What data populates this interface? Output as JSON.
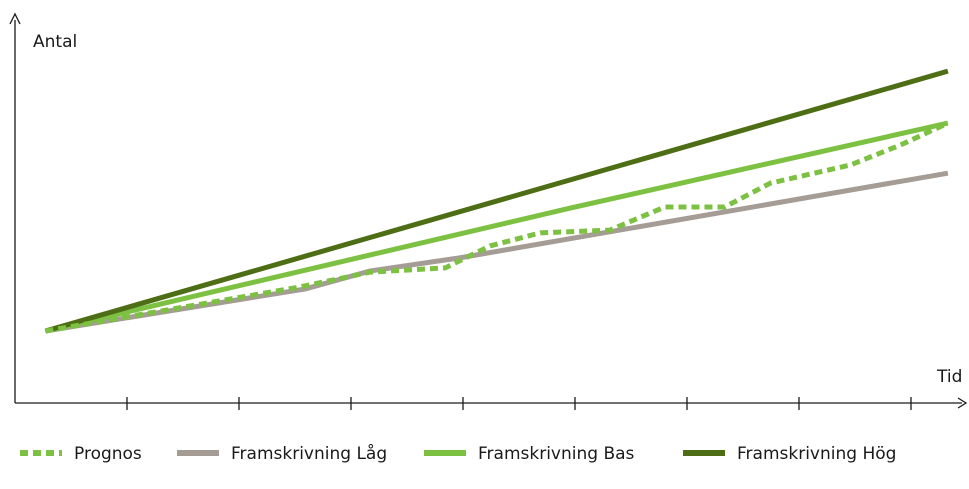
{
  "chart_data": {
    "type": "line",
    "y_label": "Antal",
    "x_label": "Tid",
    "xlim": [
      0,
      10
    ],
    "ylim": [
      0,
      100
    ],
    "series": [
      {
        "name": "Prognos",
        "color": "#7dc142",
        "dashed": true,
        "x": [
          0.32,
          2.99,
          3.74,
          4.53,
          5.0,
          5.53,
          6.26,
          6.84,
          7.47,
          7.95,
          8.79,
          9.32,
          9.82
        ],
        "values": [
          18.7,
          30.1,
          34.0,
          35.1,
          40.8,
          44.2,
          44.9,
          50.9,
          50.9,
          57.1,
          61.8,
          67.0,
          72.7
        ]
      },
      {
        "name": "Framskrivning Låg",
        "color": "#a59d95",
        "dashed": false,
        "x": [
          0.32,
          3.05,
          3.74,
          4.68,
          9.82
        ],
        "values": [
          18.7,
          29.6,
          34.3,
          37.7,
          59.7
        ]
      },
      {
        "name": "Framskrivning Bas",
        "color": "#7dc142",
        "dashed": false,
        "x": [
          0.32,
          5.84,
          9.82
        ],
        "values": [
          18.7,
          50.6,
          72.7
        ]
      },
      {
        "name": "Framskrivning Hög",
        "color": "#4e6e16",
        "dashed": false,
        "x": [
          0.32,
          9.82
        ],
        "values": [
          18.7,
          86.2
        ]
      }
    ]
  }
}
